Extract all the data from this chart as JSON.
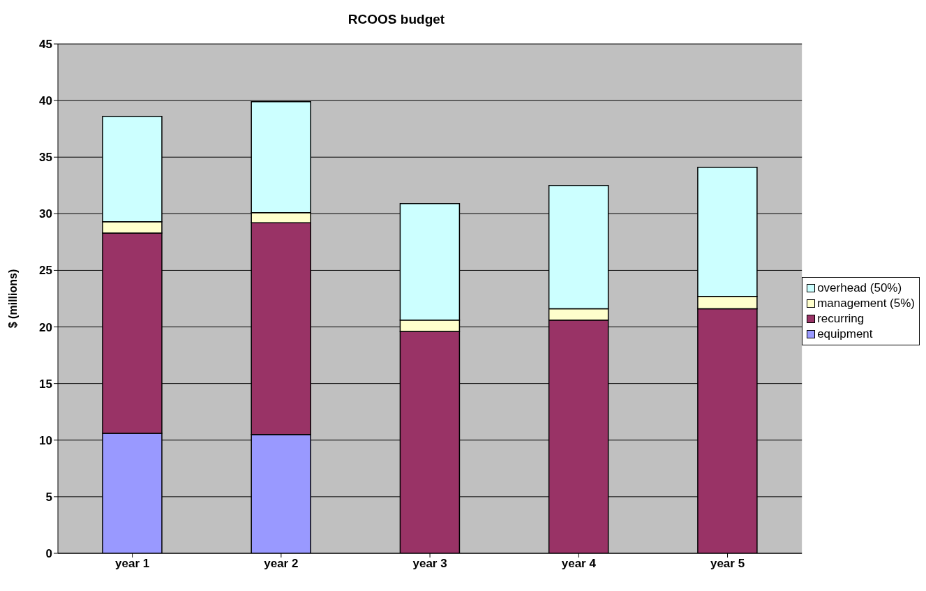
{
  "chart_data": {
    "type": "bar",
    "title": "RCOOS budget",
    "ylabel": "$ (millions)",
    "categories": [
      "year 1",
      "year 2",
      "year 3",
      "year 4",
      "year 5"
    ],
    "stacked": true,
    "series": [
      {
        "name": "equipment",
        "color": "#9999ff",
        "values": [
          10.6,
          10.5,
          0,
          0,
          0
        ]
      },
      {
        "name": "recurring",
        "color": "#993366",
        "values": [
          17.7,
          18.7,
          19.6,
          20.6,
          21.6
        ]
      },
      {
        "name": "management (5%)",
        "color": "#ffffcc",
        "values": [
          1.0,
          0.9,
          1.0,
          1.0,
          1.1
        ]
      },
      {
        "name": "overhead (50%)",
        "color": "#ccffff",
        "values": [
          9.3,
          9.8,
          10.3,
          10.9,
          11.4
        ]
      }
    ],
    "ylim": [
      0,
      45
    ],
    "yticks": [
      0,
      5,
      10,
      15,
      20,
      25,
      30,
      35,
      40,
      45
    ],
    "grid": "y",
    "legend": "right"
  }
}
